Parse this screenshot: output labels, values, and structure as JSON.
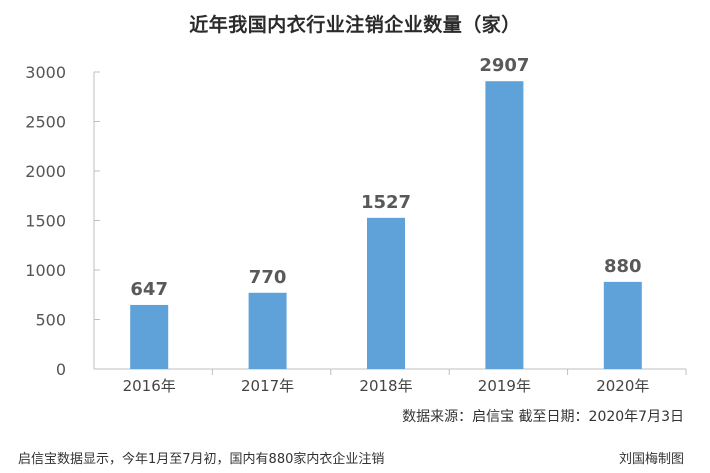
{
  "chart_data": {
    "type": "bar",
    "title": "近年我国内衣行业注销企业数量（家）",
    "categories": [
      "2016年",
      "2017年",
      "2018年",
      "2019年",
      "2020年"
    ],
    "values": [
      647,
      770,
      1527,
      2907,
      880
    ],
    "ylim": [
      0,
      3000
    ],
    "yticks": [
      0,
      500,
      1000,
      1500,
      2000,
      2500,
      3000
    ],
    "xlabel": "",
    "ylabel": "",
    "grid": false,
    "legend": "none",
    "bar_color": "#5fa2d9",
    "value_label_color": "#595959"
  },
  "source": "数据来源：启信宝 截至日期：2020年7月3日",
  "footer": {
    "caption": "启信宝数据显示，今年1月至7月初，国内有880家内衣企业注销",
    "credit": "刘国梅制图"
  }
}
